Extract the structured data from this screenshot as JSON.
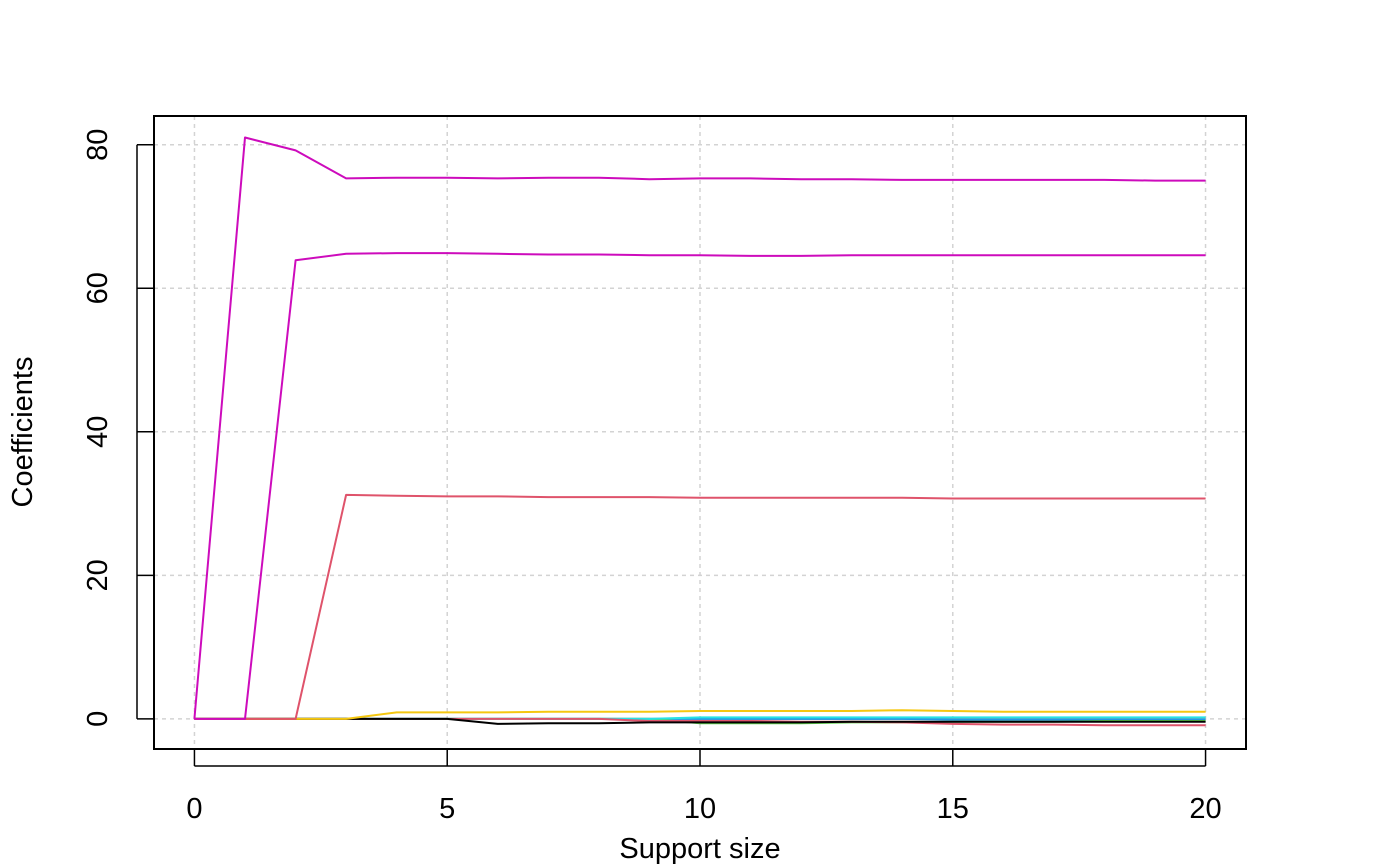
{
  "chart_data": {
    "type": "line",
    "title": "",
    "xlabel": "Support size",
    "ylabel": "Coefficients",
    "xlim": [
      -0.8,
      20.8
    ],
    "ylim": [
      -4.2,
      84.0
    ],
    "x_ticks": [
      "0",
      "5",
      "10",
      "15",
      "20"
    ],
    "y_ticks": [
      "0",
      "20",
      "40",
      "60",
      "80"
    ],
    "grid": true,
    "x": [
      0,
      1,
      2,
      3,
      4,
      5,
      6,
      7,
      8,
      9,
      10,
      11,
      12,
      13,
      14,
      15,
      16,
      17,
      18,
      19,
      20
    ],
    "series": [
      {
        "color": "#CD0BBC",
        "values": [
          0,
          81.0,
          79.2,
          75.3,
          75.4,
          75.4,
          75.3,
          75.4,
          75.4,
          75.2,
          75.3,
          75.3,
          75.2,
          75.2,
          75.1,
          75.1,
          75.1,
          75.1,
          75.1,
          75.0,
          75.0
        ]
      },
      {
        "color": "#CD0BBC",
        "values": [
          0,
          0,
          63.9,
          64.8,
          64.9,
          64.9,
          64.8,
          64.7,
          64.7,
          64.6,
          64.6,
          64.5,
          64.5,
          64.6,
          64.6,
          64.6,
          64.6,
          64.6,
          64.6,
          64.6,
          64.6
        ]
      },
      {
        "color": "#DF536B",
        "values": [
          0,
          0,
          0,
          31.2,
          31.1,
          31.0,
          31.0,
          30.9,
          30.9,
          30.9,
          30.8,
          30.8,
          30.8,
          30.8,
          30.8,
          30.7,
          30.7,
          30.7,
          30.7,
          30.7,
          30.7
        ]
      },
      {
        "color": "#F5C710",
        "values": [
          0,
          0,
          0,
          0,
          0.9,
          0.9,
          0.9,
          1.0,
          1.0,
          1.0,
          1.1,
          1.1,
          1.1,
          1.1,
          1.2,
          1.1,
          1.0,
          1.0,
          1.0,
          1.0,
          1.0
        ]
      },
      {
        "color": "#000000",
        "values": [
          0,
          0,
          0,
          0,
          0,
          0,
          -0.7,
          -0.6,
          -0.6,
          -0.5,
          -0.5,
          -0.5,
          -0.5,
          -0.4,
          -0.4,
          -0.4,
          -0.4,
          -0.4,
          -0.4,
          -0.4,
          -0.4
        ]
      },
      {
        "color": "#DF536B",
        "values": [
          0,
          0,
          0,
          0,
          0,
          0,
          0,
          0,
          0,
          -0.3,
          -0.3,
          -0.3,
          -0.4,
          -0.4,
          -0.5,
          -0.7,
          -0.8,
          -0.8,
          -0.9,
          -0.9,
          -0.9
        ]
      },
      {
        "color": "#28E2E5",
        "values": [
          0,
          0,
          0,
          0,
          0,
          0,
          0,
          0,
          0,
          0,
          0.2,
          0.2,
          0.2,
          0.2,
          0.2,
          0.2,
          0.2,
          0.2,
          0.2,
          0.2,
          0.2
        ]
      },
      {
        "color": "#61D04F",
        "values": [
          0,
          0,
          0,
          0,
          0,
          0,
          0,
          0,
          0,
          0,
          -0.6,
          -0.6,
          -0.6,
          -0.5,
          -0.5,
          -0.4,
          -0.4,
          -0.4,
          -0.3,
          -0.3,
          -0.3
        ]
      },
      {
        "color": "#2297E6",
        "values": [
          0,
          0,
          0,
          0,
          0,
          0,
          0,
          0,
          0,
          0,
          0,
          0,
          0,
          0,
          0,
          -0.1,
          -0.1,
          -0.1,
          -0.1,
          -0.1,
          -0.1
        ]
      },
      {
        "color": "#9E9E9E",
        "values": [
          0,
          0,
          0,
          0,
          0,
          0,
          0,
          0,
          0,
          0,
          0,
          0,
          0,
          0,
          0,
          0,
          0,
          0,
          0.1,
          0.1,
          0.1
        ]
      }
    ]
  }
}
